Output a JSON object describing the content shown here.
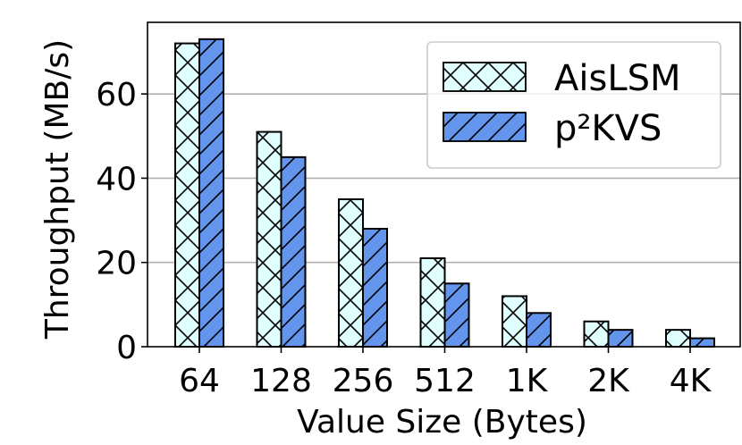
{
  "chart_data": {
    "type": "bar",
    "categories": [
      "64",
      "128",
      "256",
      "512",
      "1K",
      "2K",
      "4K"
    ],
    "series": [
      {
        "name": "AisLSM",
        "values": [
          72,
          51,
          35,
          21,
          12,
          6,
          4
        ],
        "color": "#e0ffff",
        "hatch": "cross"
      },
      {
        "name": "p²KVS",
        "values": [
          73,
          45,
          28,
          15,
          8,
          4,
          2
        ],
        "color": "#6495ed",
        "hatch": "diagonal"
      }
    ],
    "xlabel": "Value Size (Bytes)",
    "ylabel": "Throughput (MB/s)",
    "ylim": [
      0,
      77
    ],
    "yticks": [
      0,
      20,
      40,
      60
    ],
    "grid": "horizontal",
    "legend_position": "top-right"
  }
}
